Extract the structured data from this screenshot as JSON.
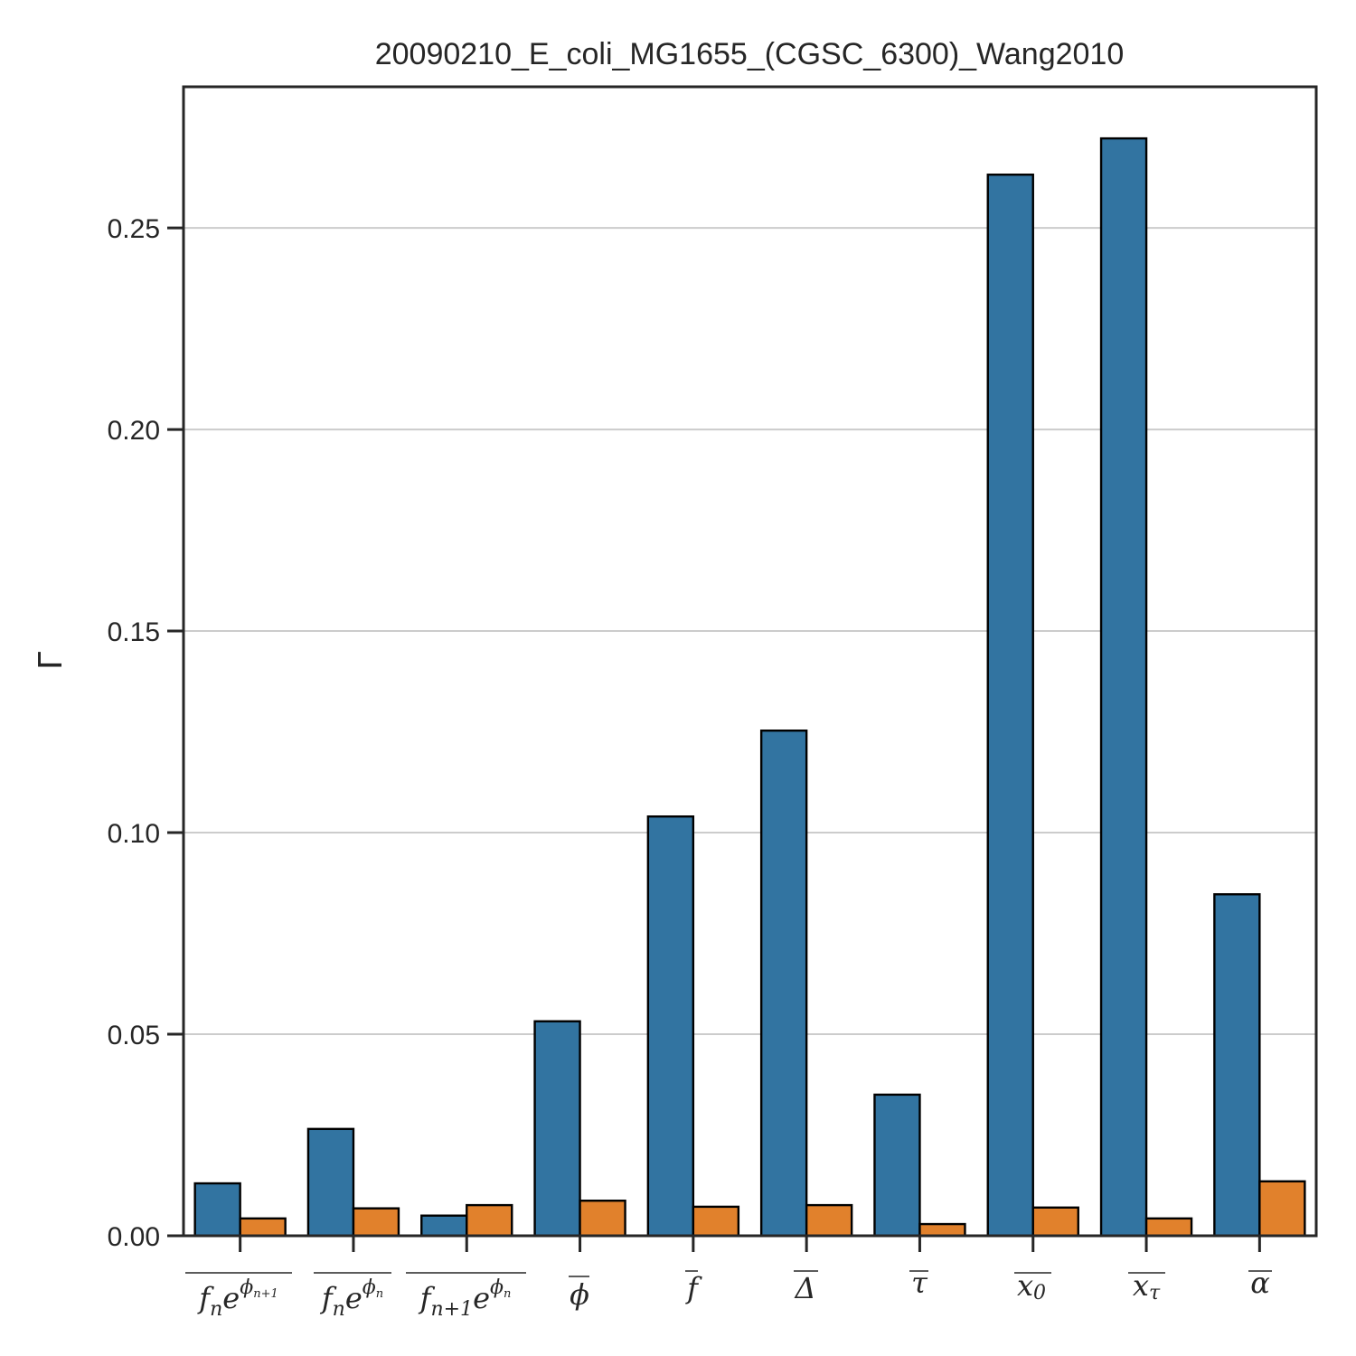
{
  "chart_data": {
    "type": "bar",
    "title": "20090210_E_coli_MG1655_(CGSC_6300)_Wang2010",
    "xlabel": "",
    "ylabel": "Γ",
    "ylim": [
      0,
      0.285
    ],
    "yticks": [
      "0.00",
      "0.05",
      "0.10",
      "0.15",
      "0.20",
      "0.25"
    ],
    "ytick_values": [
      0,
      0.05,
      0.1,
      0.15,
      0.2,
      0.25
    ],
    "grid": "horizontal",
    "legend": "none",
    "categories": [
      "f_n e^{φ_{n+1}}",
      "f_n e^{φ_n}",
      "f_{n+1} e^{φ_n}",
      "φ",
      "f",
      "Δ",
      "τ",
      "x_0",
      "x_τ",
      "α"
    ],
    "series": [
      {
        "color": "#3274a1",
        "values": [
          0.013,
          0.0265,
          0.005,
          0.0532,
          0.104,
          0.1253,
          0.035,
          0.2632,
          0.2722,
          0.0847
        ]
      },
      {
        "color": "#e1812c",
        "values": [
          0.0043,
          0.0068,
          0.0076,
          0.0087,
          0.0072,
          0.0076,
          0.0029,
          0.007,
          0.0043,
          0.0135
        ]
      }
    ]
  }
}
